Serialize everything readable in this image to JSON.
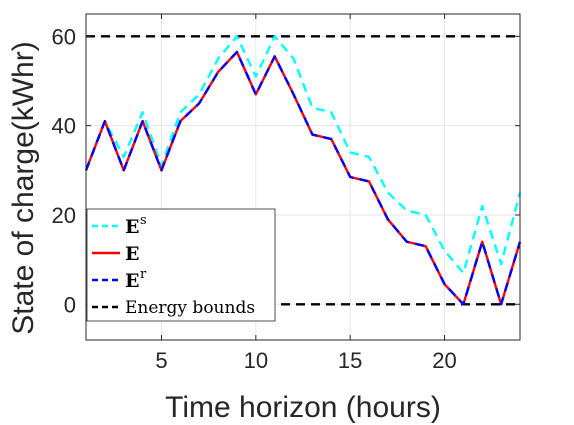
{
  "chart_data": {
    "type": "line",
    "title": "",
    "xlabel": "Time horizon (hours)",
    "ylabel": "State of charge(kWhr)",
    "xlim": [
      1,
      24
    ],
    "ylim": [
      -8,
      65
    ],
    "xticks": [
      5,
      10,
      15,
      20
    ],
    "yticks": [
      0,
      20,
      40,
      60
    ],
    "grid": true,
    "legend_position": "lower-left",
    "x": [
      1,
      2,
      3,
      4,
      5,
      6,
      7,
      8,
      9,
      10,
      11,
      12,
      13,
      14,
      15,
      16,
      17,
      18,
      19,
      20,
      21,
      22,
      23,
      24
    ],
    "series": [
      {
        "name_main": "E",
        "name_sup": "s",
        "color": "#00ffff",
        "dash": "dashed",
        "values": [
          30,
          41,
          33,
          43,
          31,
          43,
          47,
          55,
          60,
          51,
          60,
          55,
          44,
          43,
          34,
          33,
          25,
          21,
          20,
          12,
          7,
          22,
          9,
          25
        ]
      },
      {
        "name_main": "E",
        "name_sup": "",
        "color": "#ff0000",
        "dash": "solid",
        "values": [
          30,
          41,
          30,
          41,
          30,
          41,
          45,
          52,
          56.5,
          47,
          55.5,
          47,
          38,
          37,
          28.5,
          27.5,
          19,
          14,
          13,
          4.5,
          0,
          14,
          0,
          14
        ]
      },
      {
        "name_main": "E",
        "name_sup": "r",
        "color": "#0000ff",
        "dash": "dashed",
        "values": [
          30,
          41,
          30,
          41,
          30,
          41,
          45,
          52,
          56.5,
          47,
          55.5,
          47,
          38,
          37,
          28.5,
          27.5,
          19,
          14,
          13,
          4.5,
          0,
          14,
          0,
          14
        ]
      }
    ],
    "bounds": {
      "name": "Energy bounds",
      "color": "#000000",
      "dash": "dashed",
      "values": [
        0,
        60
      ]
    }
  }
}
